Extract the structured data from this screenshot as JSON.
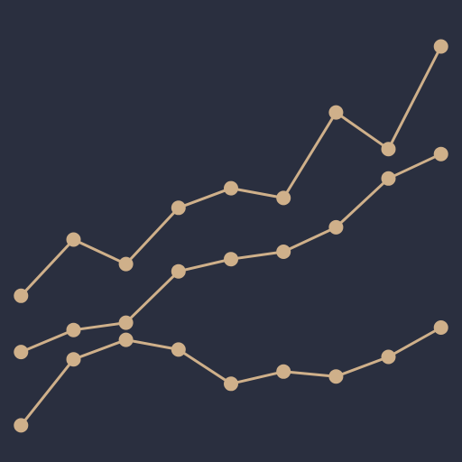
{
  "chart_data": {
    "type": "line",
    "x": [
      1,
      2,
      3,
      4,
      5,
      6,
      7,
      8,
      9
    ],
    "series": [
      {
        "values": [
          25,
          48,
          38,
          61,
          69,
          65,
          100,
          85,
          127
        ]
      },
      {
        "values": [
          2,
          11,
          14,
          35,
          40,
          43,
          53,
          73,
          83
        ]
      },
      {
        "values": [
          -28,
          -1,
          7,
          3,
          -11,
          -6,
          -8,
          0,
          12
        ]
      }
    ],
    "xlim": [
      0.6,
      9.4
    ],
    "ylim": [
      -43,
      146
    ],
    "grid": false,
    "colors": {
      "background": "#2a2f3f",
      "line": "#cfb08a",
      "marker": "#cfb08a"
    }
  }
}
